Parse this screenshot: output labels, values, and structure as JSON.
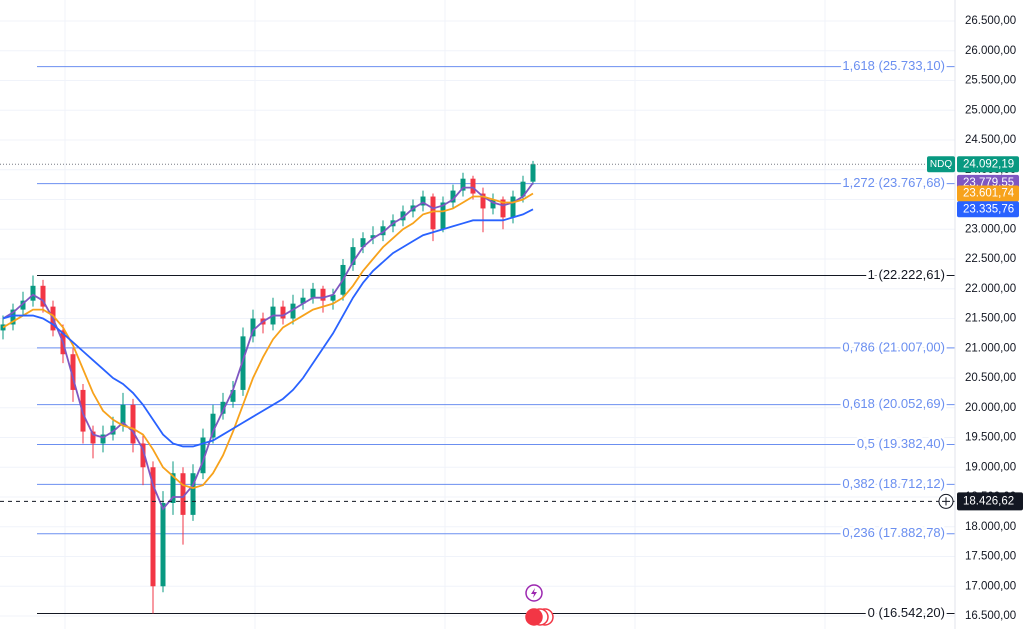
{
  "chart_data": {
    "type": "candlestick",
    "symbol": "NDQ",
    "ylim": [
      16282,
      26853
    ],
    "yticks": [
      {
        "value": 16500,
        "label": "16.500,00"
      },
      {
        "value": 17000,
        "label": "17.000,00"
      },
      {
        "value": 17500,
        "label": "17.500,00"
      },
      {
        "value": 18000,
        "label": "18.000,00"
      },
      {
        "value": 18500,
        "label": "18.500,00"
      },
      {
        "value": 19000,
        "label": "19.000,00"
      },
      {
        "value": 19500,
        "label": "19.500,00"
      },
      {
        "value": 20000,
        "label": "20.000,00"
      },
      {
        "value": 20500,
        "label": "20.500,00"
      },
      {
        "value": 21000,
        "label": "21.000,00"
      },
      {
        "value": 21500,
        "label": "21.500,00"
      },
      {
        "value": 22000,
        "label": "22.000,00"
      },
      {
        "value": 22500,
        "label": "22.500,00"
      },
      {
        "value": 23000,
        "label": "23.000,00"
      },
      {
        "value": 23500,
        "label": "23.500,00"
      },
      {
        "value": 24000,
        "label": "24.000,00"
      },
      {
        "value": 24500,
        "label": "24.500,00"
      },
      {
        "value": 25000,
        "label": "25.000,00"
      },
      {
        "value": 25500,
        "label": "25.500,00"
      },
      {
        "value": 26000,
        "label": "26.000,00"
      },
      {
        "value": 26500,
        "label": "26.500,00"
      }
    ],
    "up_color": "#089981",
    "down_color": "#f23645",
    "open": [
      21300,
      21400,
      21650,
      21800,
      22050,
      21700,
      21300,
      20900,
      20300,
      19600,
      19400,
      19550,
      19700,
      20050,
      19400,
      19000,
      17000,
      18400,
      18900,
      18200,
      18900,
      19500,
      19900,
      20100,
      20300,
      21200,
      21500,
      21400,
      21700,
      21500,
      21750,
      21850,
      22000,
      21800,
      21900,
      22400,
      22700,
      22850,
      22900,
      23050,
      23150,
      23300,
      23400,
      23550,
      23000,
      23450,
      23650,
      23850,
      23600,
      23350,
      23500,
      23200,
      23550,
      23800
    ],
    "high": [
      21550,
      21750,
      21950,
      22222.61,
      22150,
      21800,
      21400,
      21000,
      20400,
      19700,
      19700,
      19850,
      20250,
      20150,
      19550,
      19100,
      18600,
      19100,
      19000,
      19050,
      19650,
      20050,
      20250,
      20450,
      21350,
      21650,
      21600,
      21850,
      21800,
      21900,
      22000,
      22100,
      22050,
      22000,
      22500,
      22850,
      22950,
      23050,
      23150,
      23250,
      23400,
      23500,
      23650,
      23600,
      23550,
      23750,
      23950,
      23900,
      23700,
      23600,
      23550,
      23650,
      23900,
      24150
    ],
    "low": [
      21150,
      21300,
      21550,
      21700,
      21600,
      21200,
      20750,
      20100,
      19400,
      19150,
      19250,
      19450,
      19600,
      19250,
      18700,
      16542.2,
      16900,
      18200,
      17700,
      18100,
      18800,
      19400,
      19800,
      20000,
      20200,
      21100,
      21250,
      21300,
      21400,
      21400,
      21650,
      21750,
      21600,
      21650,
      21800,
      22300,
      22600,
      22750,
      22800,
      22950,
      23050,
      23200,
      23300,
      22800,
      22950,
      23350,
      23550,
      23500,
      22950,
      23250,
      23000,
      23100,
      23450,
      23750
    ],
    "close": [
      21400,
      21650,
      21800,
      22050,
      21700,
      21300,
      20900,
      20300,
      19600,
      19400,
      19550,
      19700,
      20050,
      19400,
      19000,
      17000,
      18400,
      18900,
      18200,
      18900,
      19500,
      19900,
      20100,
      20300,
      21200,
      21500,
      21400,
      21700,
      21500,
      21750,
      21850,
      22000,
      21800,
      21900,
      22400,
      22700,
      22850,
      22900,
      23050,
      23150,
      23300,
      23400,
      23550,
      23000,
      23450,
      23650,
      23850,
      23600,
      23350,
      23500,
      23200,
      23550,
      23800,
      24092.19
    ],
    "series": [
      {
        "color": "#7e57c2",
        "values": [
          21500,
          21600,
          21750,
          21900,
          21800,
          21500,
          21100,
          20500,
          19900,
          19550,
          19500,
          19600,
          19750,
          19600,
          19300,
          18700,
          18300,
          18500,
          18500,
          18700,
          19100,
          19600,
          19950,
          20300,
          20800,
          21300,
          21450,
          21550,
          21550,
          21650,
          21750,
          21850,
          21850,
          21900,
          22150,
          22450,
          22700,
          22850,
          22950,
          23100,
          23200,
          23350,
          23450,
          23350,
          23400,
          23500,
          23700,
          23700,
          23550,
          23450,
          23400,
          23450,
          23550,
          23779.55
        ]
      },
      {
        "color": "#f7a21b",
        "values": [
          21350,
          21450,
          21550,
          21650,
          21650,
          21550,
          21350,
          21050,
          20650,
          20250,
          19950,
          19800,
          19700,
          19650,
          19550,
          19300,
          19000,
          18850,
          18700,
          18650,
          18700,
          18900,
          19200,
          19600,
          20050,
          20500,
          20850,
          21150,
          21350,
          21450,
          21550,
          21650,
          21700,
          21750,
          21850,
          22050,
          22300,
          22500,
          22700,
          22850,
          23000,
          23100,
          23250,
          23300,
          23300,
          23350,
          23450,
          23550,
          23550,
          23500,
          23450,
          23450,
          23500,
          23601.74
        ]
      },
      {
        "color": "#2962ff",
        "values": [
          21500,
          21550,
          21550,
          21550,
          21500,
          21400,
          21250,
          21100,
          20950,
          20800,
          20650,
          20500,
          20400,
          20250,
          20050,
          19800,
          19550,
          19400,
          19350,
          19350,
          19400,
          19450,
          19550,
          19650,
          19750,
          19850,
          19950,
          20050,
          20150,
          20300,
          20500,
          20750,
          21000,
          21250,
          21550,
          21850,
          22100,
          22300,
          22450,
          22600,
          22700,
          22800,
          22900,
          22950,
          23000,
          23050,
          23100,
          23150,
          23150,
          23150,
          23150,
          23200,
          23250,
          23335.76
        ]
      }
    ],
    "fib_levels": [
      {
        "value": 25733.1,
        "label": "1,618 (25.733,10)",
        "color": "#6b8ff0"
      },
      {
        "value": 23767.68,
        "label": "1,272 (23.767,68)",
        "color": "#6b8ff0"
      },
      {
        "value": 22222.61,
        "label": "1 (22.222,61)",
        "color": "#131722"
      },
      {
        "value": 21007.0,
        "label": "0,786 (21.007,00)",
        "color": "#6b8ff0"
      },
      {
        "value": 20052.69,
        "label": "0,618 (20.052,69)",
        "color": "#6b8ff0"
      },
      {
        "value": 19382.4,
        "label": "0,5 (19.382,40)",
        "color": "#6b8ff0"
      },
      {
        "value": 18712.12,
        "label": "0,382 (18.712,12)",
        "color": "#6b8ff0"
      },
      {
        "value": 17882.78,
        "label": "0,236 (17.882,78)",
        "color": "#6b8ff0"
      },
      {
        "value": 16542.2,
        "label": "0 (16.542,20)",
        "color": "#131722"
      }
    ],
    "price_labels": [
      {
        "value": 24092.19,
        "label": "24.092,19",
        "color": "#089981"
      },
      {
        "value": 23779.55,
        "label": "23.779,55",
        "color": "#7e57c2"
      },
      {
        "value": 23601.74,
        "label": "23.601,74",
        "color": "#f7a21b"
      },
      {
        "value": 23335.76,
        "label": "23.335,76",
        "color": "#2962ff"
      }
    ],
    "crosshair": {
      "value": 18426.62,
      "label": "18.426,62"
    }
  }
}
